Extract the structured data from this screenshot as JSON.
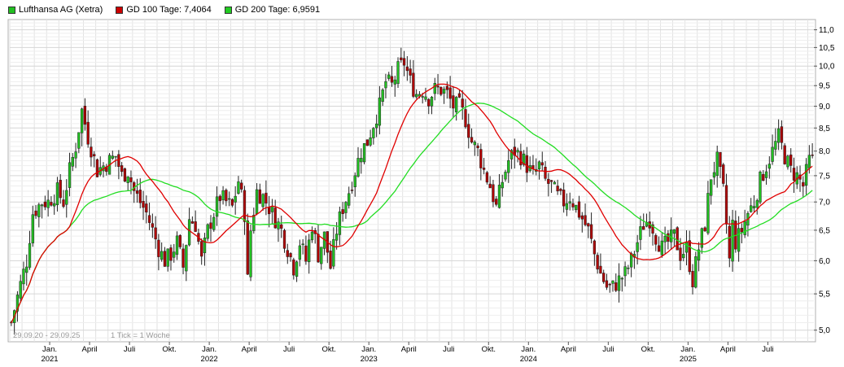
{
  "chart_data": {
    "type": "candlestick",
    "legend": [
      {
        "label": "Lufthansa AG (Xetra)",
        "color": "#22c022"
      },
      {
        "label": "GD 100 Tage: 7,4064",
        "color": "#cc0000"
      },
      {
        "label": "GD 200 Tage: 6,9591",
        "color": "#22cc22"
      }
    ],
    "date_range_label": "29.09.20 - 29.09.25",
    "tick_label": "1 Tick = 1 Woche",
    "y_axis": {
      "scale": "log",
      "ticks": [
        "5,0",
        "5,5",
        "6,0",
        "6,5",
        "7,0",
        "7,5",
        "8,0",
        "8,5",
        "9,0",
        "9,5",
        "10,0",
        "10,5",
        "11,0"
      ],
      "tick_values": [
        5.0,
        5.5,
        6.0,
        6.5,
        7.0,
        7.5,
        8.0,
        8.5,
        9.0,
        9.5,
        10.0,
        10.5,
        11.0
      ],
      "range": [
        4.85,
        11.3
      ]
    },
    "x_axis": {
      "labels": [
        {
          "text": "Jan.",
          "year": "2021",
          "week": 13
        },
        {
          "text": "April",
          "year": "",
          "week": 26
        },
        {
          "text": "Juli",
          "year": "",
          "week": 39
        },
        {
          "text": "Okt.",
          "year": "",
          "week": 52
        },
        {
          "text": "Jan.",
          "year": "2022",
          "week": 65
        },
        {
          "text": "April",
          "year": "",
          "week": 78
        },
        {
          "text": "Juli",
          "year": "",
          "week": 91
        },
        {
          "text": "Okt.",
          "year": "",
          "week": 104
        },
        {
          "text": "Jan.",
          "year": "2023",
          "week": 117
        },
        {
          "text": "April",
          "year": "",
          "week": 130
        },
        {
          "text": "Juli",
          "year": "",
          "week": 143
        },
        {
          "text": "Okt.",
          "year": "",
          "week": 156
        },
        {
          "text": "Jan.",
          "year": "2024",
          "week": 169
        },
        {
          "text": "April",
          "year": "",
          "week": 182
        },
        {
          "text": "Juli",
          "year": "",
          "week": 195
        },
        {
          "text": "Okt.",
          "year": "",
          "week": 208
        },
        {
          "text": "Jan.",
          "year": "2025",
          "week": 221
        },
        {
          "text": "April",
          "year": "",
          "week": 234
        },
        {
          "text": "Juli",
          "year": "",
          "week": 247
        }
      ],
      "week_count": 262
    },
    "price_keypoints": [
      [
        0,
        5.1
      ],
      [
        5,
        6.0
      ],
      [
        7,
        6.8
      ],
      [
        10,
        7.0
      ],
      [
        12,
        7.0
      ],
      [
        15,
        7.2
      ],
      [
        17,
        7.0
      ],
      [
        19,
        7.6
      ],
      [
        21,
        8.1
      ],
      [
        23,
        8.9
      ],
      [
        25,
        8.3
      ],
      [
        28,
        7.6
      ],
      [
        30,
        7.7
      ],
      [
        32,
        7.8
      ],
      [
        34,
        7.9
      ],
      [
        36,
        7.5
      ],
      [
        38,
        7.6
      ],
      [
        40,
        7.2
      ],
      [
        42,
        7.0
      ],
      [
        44,
        6.8
      ],
      [
        46,
        6.5
      ],
      [
        48,
        6.2
      ],
      [
        50,
        6.0
      ],
      [
        52,
        6.1
      ],
      [
        54,
        6.3
      ],
      [
        56,
        5.9
      ],
      [
        58,
        6.7
      ],
      [
        60,
        6.6
      ],
      [
        62,
        6.0
      ],
      [
        64,
        6.5
      ],
      [
        66,
        6.8
      ],
      [
        68,
        7.1
      ],
      [
        70,
        7.0
      ],
      [
        72,
        6.9
      ],
      [
        74,
        7.4
      ],
      [
        76,
        6.8
      ],
      [
        77,
        5.7
      ],
      [
        78,
        6.5
      ],
      [
        80,
        7.2
      ],
      [
        82,
        7.1
      ],
      [
        84,
        6.9
      ],
      [
        86,
        6.7
      ],
      [
        88,
        6.5
      ],
      [
        90,
        6.2
      ],
      [
        92,
        5.9
      ],
      [
        94,
        6.3
      ],
      [
        96,
        6.0
      ],
      [
        98,
        6.6
      ],
      [
        100,
        6.1
      ],
      [
        102,
        6.4
      ],
      [
        104,
        5.9
      ],
      [
        106,
        6.5
      ],
      [
        108,
        6.9
      ],
      [
        110,
        7.2
      ],
      [
        112,
        7.6
      ],
      [
        114,
        8.0
      ],
      [
        116,
        8.2
      ],
      [
        118,
        8.6
      ],
      [
        120,
        9.0
      ],
      [
        122,
        9.6
      ],
      [
        124,
        9.5
      ],
      [
        126,
        9.9
      ],
      [
        128,
        10.1
      ],
      [
        130,
        9.6
      ],
      [
        132,
        9.3
      ],
      [
        134,
        9.4
      ],
      [
        136,
        9.2
      ],
      [
        138,
        9.4
      ],
      [
        140,
        9.4
      ],
      [
        142,
        9.3
      ],
      [
        144,
        9.0
      ],
      [
        146,
        9.0
      ],
      [
        148,
        8.7
      ],
      [
        150,
        8.2
      ],
      [
        152,
        8.0
      ],
      [
        154,
        7.6
      ],
      [
        156,
        7.3
      ],
      [
        158,
        6.9
      ],
      [
        160,
        7.4
      ],
      [
        162,
        7.8
      ],
      [
        164,
        8.0
      ],
      [
        166,
        7.9
      ],
      [
        168,
        7.7
      ],
      [
        170,
        7.5
      ],
      [
        172,
        7.7
      ],
      [
        174,
        7.4
      ],
      [
        176,
        7.3
      ],
      [
        178,
        7.1
      ],
      [
        180,
        7.0
      ],
      [
        182,
        7.1
      ],
      [
        184,
        6.9
      ],
      [
        186,
        6.7
      ],
      [
        188,
        6.5
      ],
      [
        190,
        6.1
      ],
      [
        192,
        5.8
      ],
      [
        194,
        5.6
      ],
      [
        196,
        5.6
      ],
      [
        198,
        5.7
      ],
      [
        200,
        5.8
      ],
      [
        202,
        6.0
      ],
      [
        204,
        6.3
      ],
      [
        206,
        6.6
      ],
      [
        208,
        6.7
      ],
      [
        210,
        6.4
      ],
      [
        212,
        6.2
      ],
      [
        214,
        6.3
      ],
      [
        216,
        6.4
      ],
      [
        218,
        6.1
      ],
      [
        220,
        6.2
      ],
      [
        222,
        5.7
      ],
      [
        224,
        6.2
      ],
      [
        226,
        6.6
      ],
      [
        228,
        7.5
      ],
      [
        230,
        7.8
      ],
      [
        232,
        7.2
      ],
      [
        234,
        6.0
      ],
      [
        235,
        6.6
      ],
      [
        236,
        6.3
      ],
      [
        238,
        6.5
      ],
      [
        240,
        6.8
      ],
      [
        242,
        7.0
      ],
      [
        244,
        7.4
      ],
      [
        246,
        7.7
      ],
      [
        248,
        8.0
      ],
      [
        250,
        8.3
      ],
      [
        252,
        7.9
      ],
      [
        254,
        7.6
      ],
      [
        256,
        7.5
      ],
      [
        258,
        7.3
      ],
      [
        260,
        7.8
      ]
    ]
  }
}
